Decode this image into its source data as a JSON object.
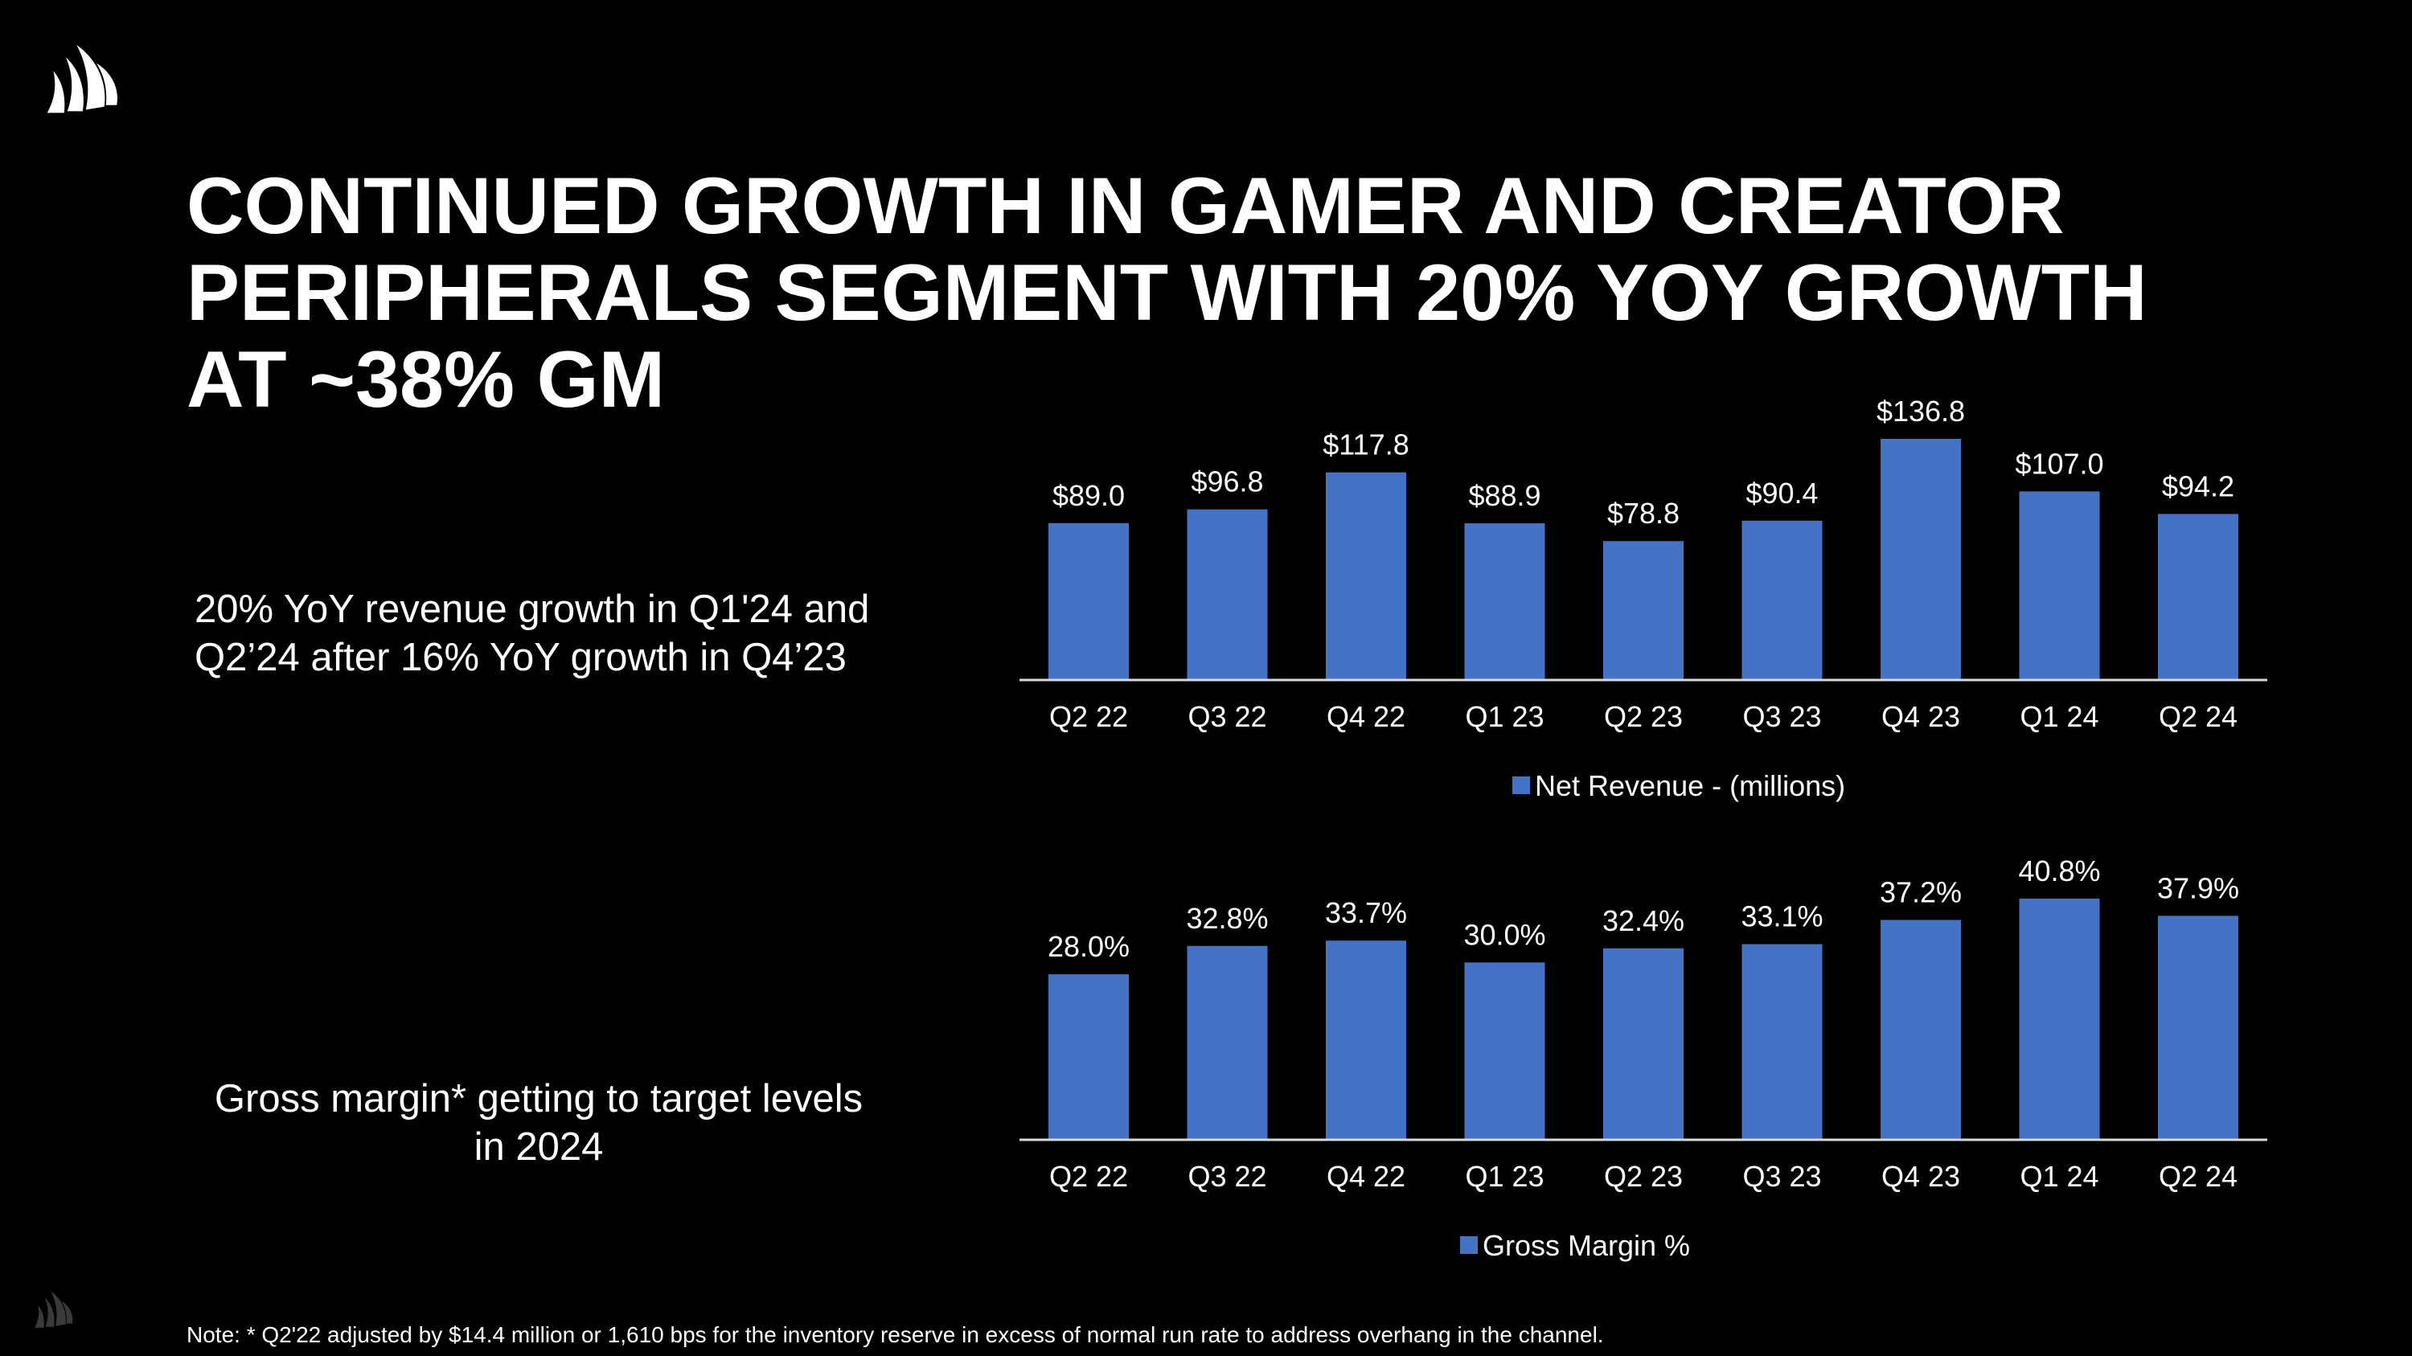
{
  "slide": {
    "title_lines": [
      "CONTINUED GROWTH IN GAMER AND CREATOR",
      "PERIPHERALS SEGMENT WITH 20% YOY GROWTH",
      "AT ~38% GM"
    ],
    "callout_revenue": [
      "20% YoY revenue growth in Q1'24 and",
      "Q2’24 after 16% YoY growth in Q4’23"
    ],
    "callout_margin": [
      "Gross margin* getting to target levels",
      "in 2024"
    ],
    "footnote": "Note: * Q2'22 adjusted by $14.4 million or 1,610 bps for the inventory reserve in excess of normal run rate to address overhang in the channel."
  },
  "logo": {
    "name": "corsair-sails-logo",
    "color": "#ffffff"
  },
  "colors": {
    "bar": "#4472C4",
    "background": "#000000",
    "text": "#ffffff",
    "axis": "#d9d9d9"
  },
  "chart_data": [
    {
      "type": "bar",
      "categories": [
        "Q2 22",
        "Q3 22",
        "Q4 22",
        "Q1 23",
        "Q2 23",
        "Q3 23",
        "Q4 23",
        "Q1 24",
        "Q2 24"
      ],
      "series": [
        {
          "name": "Net Revenue - (millions)",
          "values": [
            89.0,
            96.8,
            117.8,
            88.9,
            78.8,
            90.4,
            136.8,
            107.0,
            94.2
          ],
          "labels": [
            "$89.0",
            "$96.8",
            "$117.8",
            "$88.9",
            "$78.8",
            "$90.4",
            "$136.8",
            "$107.0",
            "$94.2"
          ]
        }
      ],
      "legend": "Net Revenue - (millions)",
      "legend_position": "bottom",
      "ylim": [
        0,
        140
      ],
      "grid": false,
      "title": "",
      "xlabel": "",
      "ylabel": ""
    },
    {
      "type": "bar",
      "categories": [
        "Q2 22",
        "Q3 22",
        "Q4 22",
        "Q1 23",
        "Q2 23",
        "Q3 23",
        "Q4 23",
        "Q1 24",
        "Q2 24"
      ],
      "series": [
        {
          "name": "Gross Margin %",
          "values": [
            28.0,
            32.8,
            33.7,
            30.0,
            32.4,
            33.1,
            37.2,
            40.8,
            37.9
          ],
          "labels": [
            "28.0%",
            "32.8%",
            "33.7%",
            "30.0%",
            "32.4%",
            "33.1%",
            "37.2%",
            "40.8%",
            "37.9%"
          ]
        }
      ],
      "legend": "Gross Margin %",
      "legend_position": "bottom",
      "ylim": [
        0,
        40
      ],
      "grid": false,
      "title": "",
      "xlabel": "",
      "ylabel": ""
    }
  ]
}
